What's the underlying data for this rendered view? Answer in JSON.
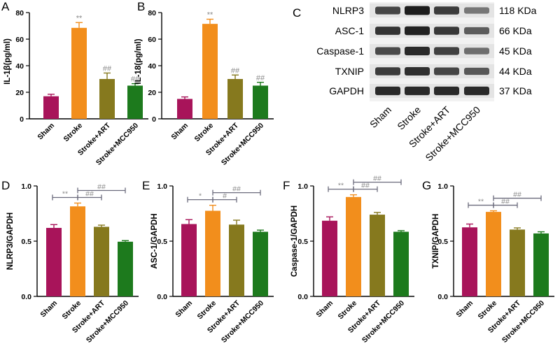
{
  "colors": {
    "Sham": "#a8145a",
    "Stroke": "#f28e1c",
    "Stroke+ART": "#86791e",
    "Stroke+MCC950": "#1d7a1d",
    "bracket": "#6b6b7d",
    "annotation": "#8a8a8a",
    "axis": "#000000"
  },
  "categories": [
    "Sham",
    "Stroke",
    "Stroke+ART",
    "Stroke+MCC950"
  ],
  "chart_data": [
    {
      "panel": "A",
      "type": "bar",
      "ylabel": "IL-1β(pg/ml)",
      "ylim": [
        0,
        80
      ],
      "yticks": [
        0,
        20,
        40,
        60,
        80
      ],
      "categories": [
        "Sham",
        "Stroke",
        "Stroke+ART",
        "Stroke+MCC950"
      ],
      "values": [
        17,
        68.5,
        30,
        25
      ],
      "errors": [
        1.5,
        4,
        4.5,
        1.5
      ],
      "annotations": [
        "",
        "**",
        "##",
        "##"
      ],
      "brackets": []
    },
    {
      "panel": "B",
      "type": "bar",
      "ylabel": "IL-18(pg/ml)",
      "ylim": [
        0,
        80
      ],
      "yticks": [
        0,
        20,
        40,
        60,
        80
      ],
      "categories": [
        "Sham",
        "Stroke",
        "Stroke+ART",
        "Stroke+MCC950"
      ],
      "values": [
        15,
        71.5,
        30,
        25
      ],
      "errors": [
        1.5,
        3.5,
        3,
        2.5
      ],
      "annotations": [
        "",
        "**",
        "##",
        "##"
      ],
      "brackets": []
    },
    {
      "panel": "D",
      "type": "bar",
      "ylabel": "NLRP3/GAPDH",
      "ylim": [
        0,
        1
      ],
      "yticks": [
        0.0,
        0.5,
        1.0
      ],
      "ytick_labels": [
        "0.0",
        "0.5",
        "1.0"
      ],
      "categories": [
        "Sham",
        "Stroke",
        "Stroke+ART",
        "Stroke+MCC950"
      ],
      "values": [
        0.62,
        0.815,
        0.63,
        0.495
      ],
      "errors": [
        0.03,
        0.03,
        0.015,
        0.01
      ],
      "annotations": [
        "",
        "",
        "",
        ""
      ],
      "brackets": [
        {
          "from": 0,
          "to": 1,
          "label": "**",
          "level": 0
        },
        {
          "from": 1,
          "to": 2,
          "label": "##",
          "level": 0
        },
        {
          "from": 1,
          "to": 3,
          "label": "##",
          "level": 1
        }
      ]
    },
    {
      "panel": "E",
      "type": "bar",
      "ylabel": "ASC-1/GAPDH",
      "ylim": [
        0,
        1
      ],
      "yticks": [
        0.0,
        0.5,
        1.0
      ],
      "ytick_labels": [
        "0.0",
        "0.5",
        "1.0"
      ],
      "categories": [
        "Sham",
        "Stroke",
        "Stroke+ART",
        "Stroke+MCC950"
      ],
      "values": [
        0.655,
        0.775,
        0.65,
        0.585
      ],
      "errors": [
        0.04,
        0.05,
        0.04,
        0.015
      ],
      "annotations": [
        "",
        "",
        "",
        ""
      ],
      "brackets": [
        {
          "from": 0,
          "to": 1,
          "label": "*",
          "level": 0
        },
        {
          "from": 1,
          "to": 2,
          "label": "#",
          "level": 0
        },
        {
          "from": 1,
          "to": 3,
          "label": "##",
          "level": 1
        }
      ]
    },
    {
      "panel": "F",
      "type": "bar",
      "ylabel": "Caspase-1/GAPDH",
      "ylim": [
        0,
        1
      ],
      "yticks": [
        0.0,
        0.5,
        1.0
      ],
      "ytick_labels": [
        "0.0",
        "0.5",
        "1.0"
      ],
      "categories": [
        "Sham",
        "Stroke",
        "Stroke+ART",
        "Stroke+MCC950"
      ],
      "values": [
        0.685,
        0.9,
        0.74,
        0.585
      ],
      "errors": [
        0.035,
        0.02,
        0.02,
        0.01
      ],
      "annotations": [
        "",
        "",
        "",
        ""
      ],
      "brackets": [
        {
          "from": 0,
          "to": 1,
          "label": "**",
          "level": 0
        },
        {
          "from": 1,
          "to": 2,
          "label": "##",
          "level": 0
        },
        {
          "from": 1,
          "to": 3,
          "label": "##",
          "level": 1
        }
      ]
    },
    {
      "panel": "G",
      "type": "bar",
      "ylabel": "TXNIP/GAPDH",
      "ylim": [
        0,
        1
      ],
      "yticks": [
        0.0,
        0.5,
        1.0
      ],
      "ytick_labels": [
        "0.0",
        "0.5",
        "1.0"
      ],
      "categories": [
        "Sham",
        "Stroke",
        "Stroke+ART",
        "Stroke+MCC950"
      ],
      "values": [
        0.625,
        0.765,
        0.605,
        0.57
      ],
      "errors": [
        0.03,
        0.01,
        0.015,
        0.015
      ],
      "annotations": [
        "",
        "",
        "",
        ""
      ],
      "brackets": [
        {
          "from": 0,
          "to": 1,
          "label": "**",
          "level": 0
        },
        {
          "from": 1,
          "to": 2,
          "label": "##",
          "level": 0
        },
        {
          "from": 1,
          "to": 3,
          "label": "##",
          "level": 1
        }
      ]
    }
  ],
  "western_blot": {
    "panel": "C",
    "proteins": [
      {
        "name": "NLRP3",
        "kda": "118 KDa",
        "intensity": [
          0.72,
          0.95,
          0.78,
          0.45
        ]
      },
      {
        "name": "ASC-1",
        "kda": "66 KDa",
        "intensity": [
          0.82,
          0.92,
          0.8,
          0.6
        ]
      },
      {
        "name": "Caspase-1",
        "kda": "45 KDa",
        "intensity": [
          0.7,
          0.88,
          0.75,
          0.5
        ]
      },
      {
        "name": "TXNIP",
        "kda": "44 KDa",
        "intensity": [
          0.78,
          0.85,
          0.72,
          0.62
        ]
      },
      {
        "name": "GAPDH",
        "kda": "37 KDa",
        "intensity": [
          0.88,
          0.88,
          0.88,
          0.88
        ]
      }
    ],
    "lane_labels": [
      "Sham",
      "Stroke",
      "Stroke+ART",
      "Stroke+MCC950"
    ]
  }
}
